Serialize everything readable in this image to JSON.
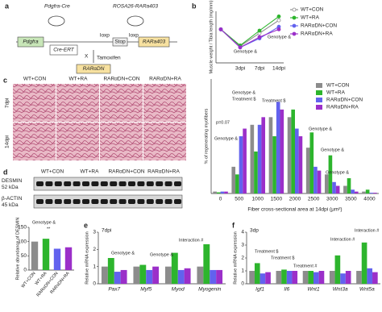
{
  "panel_labels": [
    "a",
    "b",
    "c",
    "d",
    "e",
    "f"
  ],
  "diagram": {
    "mouse1": "Pdgfra-Cre",
    "mouse2": "ROSA26-RARa403",
    "promoter": "Pdgfra",
    "cre": "Cre-ERT",
    "loxp1": "loxp",
    "loxp2": "loxp",
    "stop": "Stop",
    "gene": "RARa403",
    "cross": "X",
    "drug": "Tamoxifen",
    "product": "RARαDN"
  },
  "histology": {
    "columns": [
      "WT+CON",
      "WT+RA",
      "RARαDN+CON",
      "RARαDN+RA"
    ],
    "rows": [
      "7dpi",
      "14dpi"
    ]
  },
  "blot": {
    "columns": [
      "WT+CON",
      "WT+RA",
      "RARαDN+CON",
      "RARαDN+RA"
    ],
    "bands": [
      "DESMIN\n52 kDa",
      "β-ACTIN\n45 kDa"
    ]
  },
  "chart_data": [
    {
      "type": "line",
      "ylabel": "Muscle weight / Tibia length (mg/mm)",
      "categories": [
        null,
        "3dpi",
        "7dpi",
        "14dpi"
      ],
      "ylim": [
        0.2,
        1.0
      ],
      "legend": "right",
      "series": [
        {
          "name": "WT+CON",
          "color": "#8c8c8c",
          "values": [
            0.72,
            0.46,
            0.66,
            0.86
          ]
        },
        {
          "name": "WT+RA",
          "color": "#2db52d",
          "values": [
            0.72,
            0.47,
            0.7,
            0.92
          ]
        },
        {
          "name": "RARαDN+CON",
          "color": "#6262ee",
          "values": [
            0.72,
            0.44,
            0.58,
            0.76
          ]
        },
        {
          "name": "RARαDN+RA",
          "color": "#9b2fc9",
          "values": [
            0.72,
            0.44,
            0.6,
            0.72
          ]
        }
      ],
      "annotations": [
        "Genotype &",
        "Genotype &"
      ]
    },
    {
      "type": "bar",
      "ylabel": "% of regenerating myofibers",
      "xlabel": "Fiber cross-sectional area at 14dpi (μm²)",
      "categories": [
        "0",
        "500",
        "1000",
        "1500",
        "2000",
        "2500",
        "3000",
        "3500",
        "4000"
      ],
      "ylim": [
        0,
        30
      ],
      "legend": "upper right",
      "series": [
        {
          "name": "WT+CON",
          "color": "#8c8c8c",
          "values": [
            0.5,
            7,
            18,
            20,
            20,
            12,
            5,
            2,
            0.5
          ]
        },
        {
          "name": "WT+RA",
          "color": "#2db52d",
          "values": [
            0.3,
            5,
            11,
            15,
            22,
            16,
            10,
            4,
            1
          ]
        },
        {
          "name": "RARαDN+CON",
          "color": "#6262ee",
          "values": [
            0.5,
            15,
            18,
            24,
            17,
            7,
            3,
            1,
            0.2
          ]
        },
        {
          "name": "RARαDN+RA",
          "color": "#9b2fc9",
          "values": [
            0.5,
            17,
            20,
            22,
            15,
            6,
            2,
            0.5,
            0.2
          ]
        }
      ],
      "annotations": [
        "Genotype &",
        "Treatment $",
        "Treatment $",
        "p=0.07",
        "Genotype &",
        "Genotype &",
        "Genotype &",
        "Genotype &"
      ]
    },
    {
      "type": "bar",
      "ylabel": "Relative abundance of DESMIN",
      "categories": [
        "WT+CON",
        "WT+RA",
        "RARαDN+CON",
        "RARαDN+RA"
      ],
      "ylim": [
        0,
        150
      ],
      "yticks": [
        0,
        50,
        100,
        150
      ],
      "series": [
        {
          "colors": [
            "#8c8c8c",
            "#2db52d",
            "#6262ee",
            "#9b2fc9"
          ],
          "values": [
            100,
            110,
            75,
            80
          ]
        }
      ],
      "annotations": [
        "Genotype &",
        "**"
      ]
    },
    {
      "type": "bar",
      "title": "7dpi",
      "ylabel": "Relative mRNA expression",
      "categories": [
        "Pax7",
        "Myf5",
        "Myod",
        "Myogenin"
      ],
      "ylim": [
        0,
        3
      ],
      "yticks": [
        0,
        1,
        2,
        3
      ],
      "series": [
        {
          "color": "#8c8c8c",
          "values": [
            1,
            1,
            1,
            1
          ]
        },
        {
          "color": "#2db52d",
          "values": [
            1.5,
            1.1,
            1.8,
            2.3
          ]
        },
        {
          "color": "#6262ee",
          "values": [
            0.7,
            0.8,
            0.8,
            0.8
          ]
        },
        {
          "color": "#9b2fc9",
          "values": [
            0.8,
            1.0,
            0.9,
            0.8
          ]
        }
      ],
      "annotations": [
        "Genotype &",
        "Genotype &",
        "Interaction #"
      ]
    },
    {
      "type": "bar",
      "title": "3dp",
      "ylabel": "Relative mRNA expression",
      "categories": [
        "Igf1",
        "Il6",
        "Wnt1",
        "Wnt3a",
        "Wnt5a"
      ],
      "ylim": [
        0,
        4
      ],
      "yticks": [
        0,
        1,
        2,
        3,
        4
      ],
      "series": [
        {
          "color": "#8c8c8c",
          "values": [
            1,
            1,
            1,
            1,
            1
          ]
        },
        {
          "color": "#2db52d",
          "values": [
            1.6,
            1.1,
            1.0,
            2.2,
            3.2
          ]
        },
        {
          "color": "#6262ee",
          "values": [
            0.8,
            1.0,
            0.9,
            0.8,
            1.2
          ]
        },
        {
          "color": "#9b2fc9",
          "values": [
            0.9,
            1.0,
            1.0,
            1.0,
            0.9
          ]
        }
      ],
      "annotations": [
        "Treatment $",
        "Treatment $",
        "Treatment #",
        "Interaction #",
        "Interaction #"
      ]
    }
  ]
}
